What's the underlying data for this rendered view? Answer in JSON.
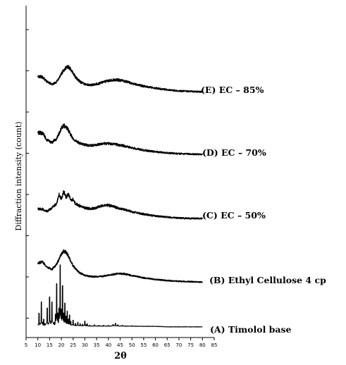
{
  "chart_data": {
    "type": "line",
    "title": "",
    "xlabel": "2θ",
    "ylabel": "Diffraction intensity (count)",
    "xlim": [
      5,
      85
    ],
    "xticks": [
      5,
      10,
      15,
      20,
      25,
      30,
      35,
      40,
      45,
      50,
      55,
      60,
      65,
      70,
      75,
      80,
      85
    ],
    "grid": false,
    "legend": "labels at right end of each trace",
    "series": [
      {
        "name": "(A) Timolol base",
        "x": [
          10,
          10.5,
          11,
          11.5,
          12,
          12.5,
          13,
          14,
          14.5,
          15,
          15.5,
          16,
          17,
          17.5,
          18,
          18.5,
          19,
          19.5,
          20,
          20.5,
          21,
          21.5,
          22,
          22.5,
          23,
          23.5,
          24,
          25,
          26,
          27,
          28,
          29,
          30,
          30.5,
          31,
          32,
          34,
          36,
          38,
          40,
          42,
          43,
          44,
          46,
          50,
          55,
          60,
          65,
          70,
          75,
          80
        ],
        "y": [
          8,
          30,
          10,
          52,
          12,
          18,
          9,
          40,
          10,
          62,
          14,
          52,
          12,
          28,
          88,
          30,
          40,
          125,
          38,
          84,
          30,
          50,
          24,
          34,
          18,
          26,
          14,
          16,
          10,
          12,
          9,
          8,
          14,
          7,
          9,
          6,
          7,
          6,
          6,
          6,
          8,
          10,
          7,
          6,
          5,
          4,
          4,
          3,
          3,
          3,
          3
        ]
      },
      {
        "name": "(B) Ethyl Cellulose 4 cp",
        "x": [
          10,
          12,
          14,
          16,
          18,
          20,
          21,
          22,
          23,
          24,
          25,
          26,
          28,
          30,
          32,
          34,
          36,
          38,
          40,
          42,
          44,
          46,
          48,
          50,
          55,
          60,
          65,
          70,
          75,
          80
        ],
        "y": [
          55,
          58,
          44,
          38,
          52,
          78,
          86,
          83,
          74,
          60,
          48,
          40,
          28,
          23,
          20,
          19,
          19,
          21,
          23,
          25,
          27,
          27,
          25,
          22,
          16,
          12,
          9,
          7,
          6,
          5
        ]
      },
      {
        "name": "(C) EC – 50%",
        "x": [
          10,
          12,
          14,
          16,
          18,
          19,
          20,
          21,
          22,
          23,
          24,
          25,
          26,
          28,
          30,
          32,
          34,
          36,
          38,
          40,
          42,
          44,
          46,
          48,
          50,
          55,
          60,
          65,
          70,
          75,
          80
        ],
        "y": [
          28,
          27,
          22,
          30,
          40,
          62,
          50,
          70,
          55,
          63,
          48,
          50,
          40,
          34,
          30,
          28,
          29,
          33,
          36,
          36,
          33,
          30,
          27,
          24,
          21,
          15,
          11,
          8,
          6,
          5,
          5
        ]
      },
      {
        "name": "(D) EC – 70%",
        "x": [
          10,
          12,
          14,
          16,
          18,
          20,
          21,
          22,
          23,
          24,
          25,
          26,
          28,
          30,
          32,
          34,
          36,
          38,
          40,
          42,
          44,
          46,
          48,
          50,
          55,
          60,
          65,
          70,
          75,
          80
        ],
        "y": [
          62,
          60,
          42,
          36,
          46,
          72,
          80,
          76,
          68,
          56,
          46,
          40,
          34,
          30,
          28,
          29,
          31,
          33,
          33,
          32,
          30,
          28,
          25,
          22,
          16,
          12,
          9,
          7,
          6,
          5
        ]
      },
      {
        "name": "(E) EC – 85%",
        "x": [
          10,
          12,
          14,
          16,
          18,
          20,
          21,
          22,
          23,
          24,
          25,
          26,
          28,
          30,
          32,
          34,
          36,
          38,
          40,
          42,
          44,
          46,
          48,
          50,
          55,
          60,
          65,
          70,
          75,
          80
        ],
        "y": [
          44,
          42,
          30,
          24,
          30,
          50,
          60,
          66,
          68,
          62,
          52,
          42,
          30,
          24,
          22,
          23,
          26,
          30,
          33,
          35,
          35,
          33,
          30,
          26,
          19,
          14,
          10,
          7,
          6,
          5
        ]
      }
    ]
  }
}
